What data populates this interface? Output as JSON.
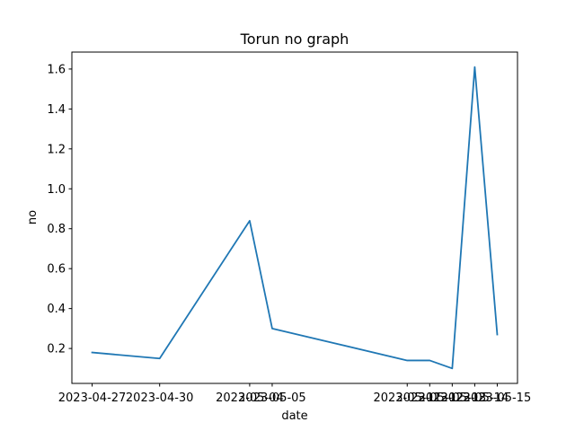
{
  "chart_data": {
    "type": "line",
    "title": "Torun no graph",
    "xlabel": "date",
    "ylabel": "no",
    "x": [
      "2023-04-27",
      "2023-04-30",
      "2023-05-04",
      "2023-05-05",
      "2023-05-11",
      "2023-05-12",
      "2023-05-13",
      "2023-05-14",
      "2023-05-15"
    ],
    "series": [
      {
        "values": [
          0.18,
          0.15,
          0.84,
          0.3,
          0.14,
          0.14,
          0.1,
          1.61,
          0.27
        ],
        "color": "#1f77b4"
      }
    ],
    "yticks": [
      "0.2",
      "0.4",
      "0.6",
      "0.8",
      "1.0",
      "1.2",
      "1.4",
      "1.6"
    ],
    "ylim": [
      0.025,
      1.685
    ],
    "grid": false,
    "legend": "none"
  }
}
